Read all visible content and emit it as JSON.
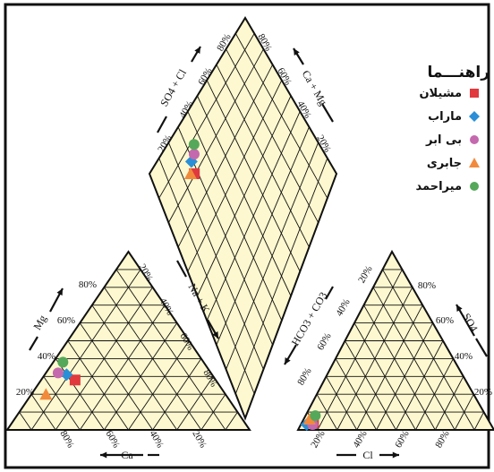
{
  "chart_data": {
    "type": "scatter",
    "diagram": "piper",
    "colors": {
      "fill": "#fdf8cf",
      "line": "#111111"
    },
    "cation_triangle": {
      "axes": {
        "left": "Mg",
        "bottom": "Ca"
      },
      "ticks_left": [
        "20%",
        "40%",
        "60%",
        "80%"
      ],
      "ticks_right": [
        "20%",
        "40%",
        "60%",
        "80%"
      ],
      "ticks_bottom": [
        "80%",
        "60%",
        "40%",
        "20%"
      ]
    },
    "anion_triangle": {
      "axes": {
        "right": "SO4",
        "bottom": "Cl",
        "left": "HCO3 + CO3"
      },
      "ticks_left": [
        "20%",
        "40%",
        "60%",
        "80%"
      ],
      "ticks_right": [
        "80%",
        "60%",
        "40%",
        "20%"
      ],
      "ticks_bottom": [
        "20%",
        "40%",
        "60%",
        "80%"
      ]
    },
    "diamond": {
      "axes": {
        "upper_left": "SO4 + Cl",
        "upper_right": "Ca + Mg",
        "lower_left": "Na + K"
      },
      "ticks_upper_left": [
        "80%",
        "60%",
        "40%",
        "20%"
      ],
      "ticks_upper_right": [
        "80%",
        "60%",
        "40%",
        "20%"
      ]
    },
    "legend": {
      "title": "راهنـــما",
      "items": [
        "مشیلان",
        "ماراب",
        "بی ابر",
        "جابری",
        "میراحمد"
      ]
    },
    "series": [
      {
        "name": "مشیلان",
        "marker": "square",
        "color": "#e0393e",
        "cation": {
          "ca": 58,
          "mg": 28
        },
        "anion": {
          "cl": 6,
          "so4": 4
        },
        "diamond": {
          "so4cl": 24,
          "camg": 76
        }
      },
      {
        "name": "ماراب",
        "marker": "diamond",
        "color": "#2a8fd6",
        "cation": {
          "ca": 60,
          "mg": 31
        },
        "anion": {
          "cl": 3,
          "so4": 3
        },
        "diamond": {
          "so4cl": 25,
          "camg": 80
        }
      },
      {
        "name": "بی ابر",
        "marker": "circle",
        "color": "#c469ae",
        "cation": {
          "ca": 63,
          "mg": 32
        },
        "anion": {
          "cl": 6,
          "so4": 3
        },
        "diamond": {
          "so4cl": 28,
          "camg": 80
        }
      },
      {
        "name": "جابری",
        "marker": "triangle",
        "color": "#f28a3c",
        "cation": {
          "ca": 74,
          "mg": 20
        },
        "anion": {
          "cl": 3,
          "so4": 6
        },
        "diamond": {
          "so4cl": 22,
          "camg": 78
        }
      },
      {
        "name": "میراحمد",
        "marker": "circle",
        "color": "#55a85a",
        "cation": {
          "ca": 58,
          "mg": 38
        },
        "anion": {
          "cl": 5,
          "so4": 8
        },
        "diamond": {
          "so4cl": 30,
          "camg": 82
        }
      }
    ]
  }
}
